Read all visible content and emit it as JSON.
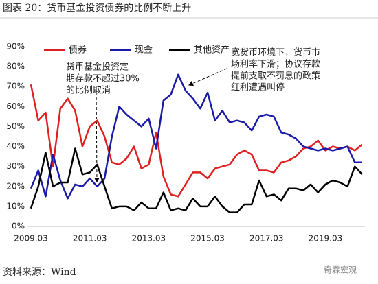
{
  "chart_data": {
    "type": "line",
    "title": "图表 20：货币基金投资债券的比例不断上升",
    "source": "资料来源：Wind",
    "watermark": "奇霖宏观",
    "categories": [
      "2009.03",
      null,
      null,
      null,
      null,
      null,
      null,
      null,
      "2011.03",
      null,
      null,
      null,
      null,
      null,
      null,
      null,
      "2013.03",
      null,
      null,
      null,
      null,
      null,
      null,
      null,
      "2015.03",
      null,
      null,
      null,
      null,
      null,
      null,
      null,
      "2017.03",
      null,
      null,
      null,
      null,
      null,
      null,
      null,
      "2019.03",
      null,
      null,
      null,
      null,
      null
    ],
    "series": [
      {
        "name": "债券",
        "color": "#e02020",
        "values": [
          71,
          53,
          57,
          30,
          59,
          64,
          58,
          40,
          50,
          53,
          45,
          32,
          31,
          34,
          40,
          29,
          31,
          47,
          25,
          16,
          15,
          21,
          27,
          27,
          24,
          29,
          30,
          31,
          36,
          38,
          36,
          28,
          28,
          27,
          32,
          33,
          35,
          39,
          40,
          43,
          38,
          40,
          39,
          40,
          38,
          41
        ]
      },
      {
        "name": "现金",
        "color": "#1a1aa8",
        "values": [
          19,
          28,
          15,
          36,
          23,
          14,
          21,
          20,
          24,
          20,
          24,
          45,
          60,
          56,
          53,
          50,
          54,
          39,
          63,
          66,
          76,
          68,
          64,
          59,
          67,
          53,
          58,
          52,
          53,
          52,
          48,
          55,
          56,
          55,
          47,
          46,
          44,
          40,
          39,
          38,
          39,
          38,
          39,
          40,
          32,
          32
        ]
      },
      {
        "name": "其他资产",
        "color": "#000000",
        "values": [
          9,
          20,
          37,
          20,
          22,
          22,
          39,
          26,
          27,
          31,
          20,
          9,
          10,
          10,
          8,
          12,
          9,
          9,
          17,
          8,
          9,
          8,
          14,
          10,
          10,
          15,
          10,
          7,
          7,
          11,
          11,
          23,
          15,
          16,
          13,
          19,
          19,
          18,
          21,
          17,
          21,
          23,
          22,
          20,
          30,
          26
        ]
      }
    ],
    "ylim": [
      0,
      90
    ],
    "yticks": [
      {
        "value": 0,
        "label": "0%"
      },
      {
        "value": 10,
        "label": "10%"
      },
      {
        "value": 20,
        "label": "20%"
      },
      {
        "value": 30,
        "label": "30%"
      },
      {
        "value": 40,
        "label": "40%"
      },
      {
        "value": 50,
        "label": "50%"
      },
      {
        "value": 60,
        "label": "60%"
      },
      {
        "value": 70,
        "label": "70%"
      },
      {
        "value": 80,
        "label": "80%"
      },
      {
        "value": 90,
        "label": "90%"
      }
    ],
    "grid": false,
    "legend": "top-left",
    "annotations": [
      {
        "lines": [
          "货币基金投资定",
          "期存款不超过30%",
          "的比例取消"
        ]
      },
      {
        "lines": [
          "宽货币环境下，货币市",
          "场利率下滑；协议存款",
          "提前支取不罚息的政策",
          "红利遭遇叫停"
        ]
      }
    ]
  }
}
